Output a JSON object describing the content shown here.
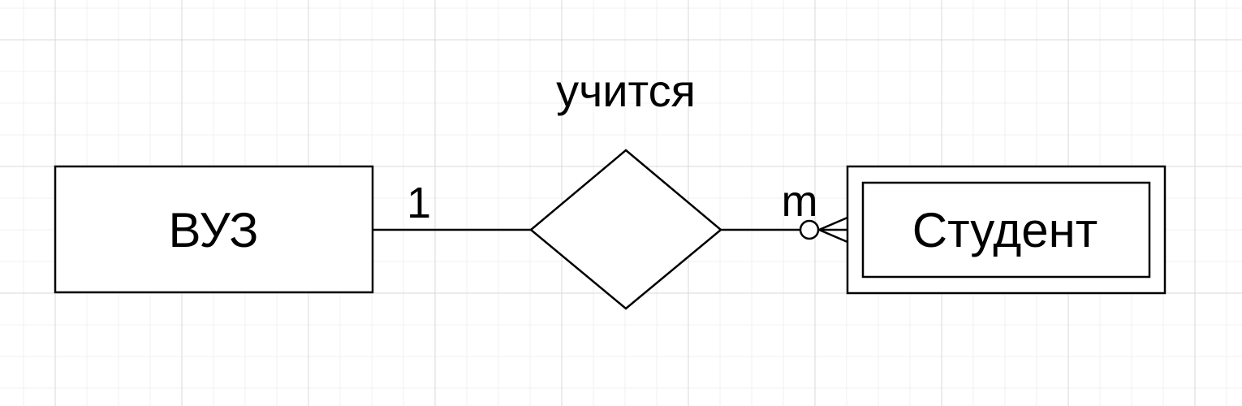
{
  "relationship": {
    "label": "учится"
  },
  "entities": {
    "left": {
      "label": "ВУЗ"
    },
    "right": {
      "label": "Студент"
    }
  },
  "cardinality": {
    "left": "1",
    "right": "m"
  },
  "colors": {
    "stroke": "#000000",
    "grid_major": "#d9d9d9",
    "grid_minor": "#f0f0f0",
    "background": "#ffffff"
  }
}
